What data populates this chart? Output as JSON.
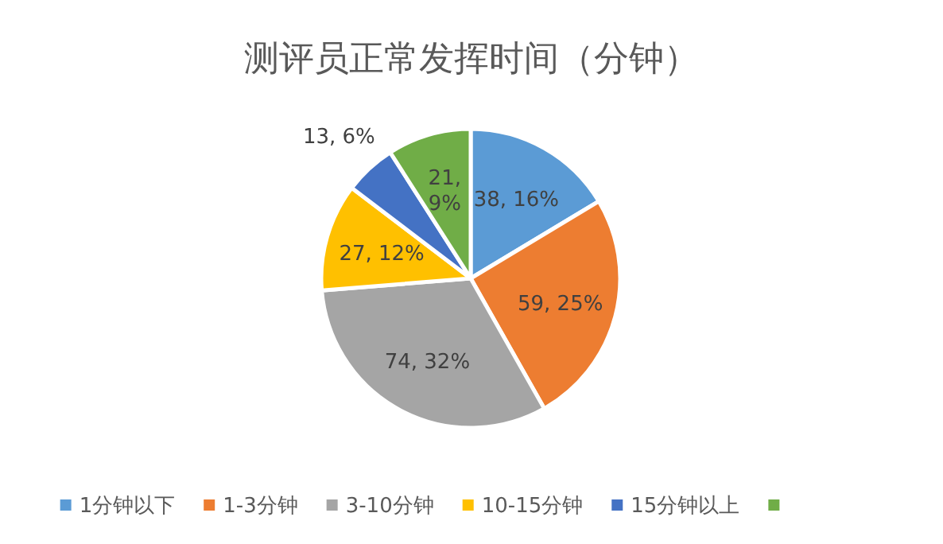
{
  "chart_data": {
    "type": "pie",
    "title": "测评员正常发挥时间（分钟）",
    "categories": [
      "1分钟以下",
      "1-3分钟",
      "3-10分钟",
      "10-15分钟",
      "15分钟以上",
      null
    ],
    "values": [
      38,
      59,
      74,
      27,
      13,
      21
    ],
    "colors": [
      "#5b9bd5",
      "#ed7d31",
      "#a5a5a5",
      "#ffc000",
      "#4472c4",
      "#70ad47"
    ],
    "value_labels": [
      "38, 16%",
      "59, 25%",
      "74, 32%",
      "27, 12%",
      "13, 6%",
      "21, 9%"
    ],
    "legend": "bottom"
  }
}
